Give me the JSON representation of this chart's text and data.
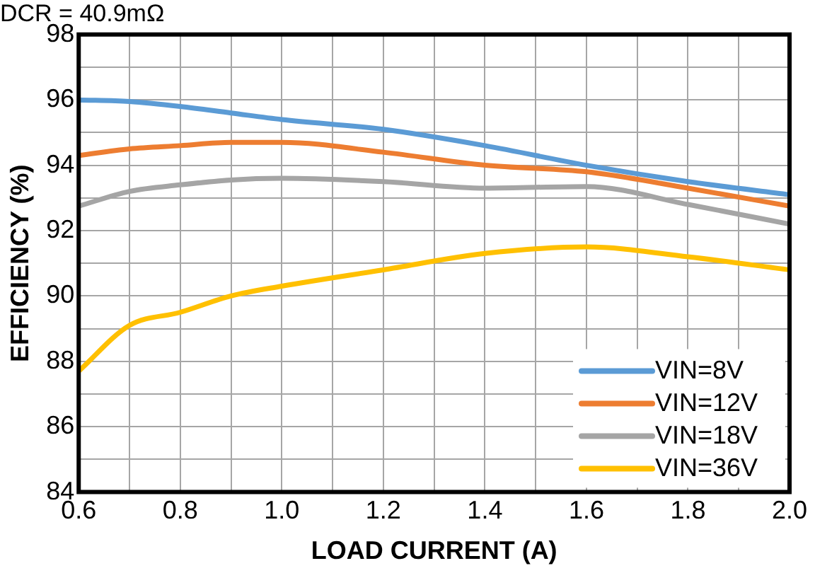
{
  "chart_data": {
    "type": "line",
    "title": "DCR = 40.9mΩ",
    "xlabel": "LOAD CURRENT (A)",
    "ylabel": "EFFICIENCY (%)",
    "x": [
      0.6,
      0.7,
      0.8,
      0.9,
      1.0,
      1.2,
      1.4,
      1.6,
      1.8,
      2.0
    ],
    "series": [
      {
        "name": "VIN=8V",
        "color": "#5b9bd5",
        "values": [
          96.0,
          95.95,
          95.8,
          95.6,
          95.4,
          95.1,
          94.6,
          94.0,
          93.5,
          93.1
        ]
      },
      {
        "name": "VIN=12V",
        "color": "#ed7d31",
        "values": [
          94.3,
          94.5,
          94.6,
          94.7,
          94.7,
          94.4,
          94.0,
          93.8,
          93.3,
          92.75
        ]
      },
      {
        "name": "VIN=18V",
        "color": "#a5a5a5",
        "values": [
          92.75,
          93.2,
          93.4,
          93.55,
          93.6,
          93.5,
          93.3,
          93.35,
          92.8,
          92.2
        ]
      },
      {
        "name": "VIN=36V",
        "color": "#ffc000",
        "values": [
          87.7,
          89.1,
          89.5,
          90.0,
          90.3,
          90.8,
          91.3,
          91.5,
          91.2,
          90.8
        ]
      }
    ],
    "xlim": [
      0.6,
      2.0
    ],
    "xticks": [
      {
        "value": 0.6,
        "label": "0.6"
      },
      {
        "value": 0.7,
        "label": null
      },
      {
        "value": 0.8,
        "label": "0.8"
      },
      {
        "value": 0.9,
        "label": null
      },
      {
        "value": 1.0,
        "label": "1.0"
      },
      {
        "value": 1.1,
        "label": null
      },
      {
        "value": 1.2,
        "label": "1.2"
      },
      {
        "value": 1.3,
        "label": null
      },
      {
        "value": 1.4,
        "label": "1.4"
      },
      {
        "value": 1.5,
        "label": null
      },
      {
        "value": 1.6,
        "label": "1.6"
      },
      {
        "value": 1.7,
        "label": null
      },
      {
        "value": 1.8,
        "label": "1.8"
      },
      {
        "value": 1.9,
        "label": null
      },
      {
        "value": 2.0,
        "label": "2.0"
      }
    ],
    "ylim": [
      84,
      98
    ],
    "yticks": [
      84,
      {
        "value": 85,
        "label": null
      },
      86,
      {
        "value": 87,
        "label": null
      },
      88,
      {
        "value": 89,
        "label": null
      },
      90,
      {
        "value": 91,
        "label": null
      },
      92,
      {
        "value": 93,
        "label": null
      },
      94,
      {
        "value": 95,
        "label": null
      },
      96,
      {
        "value": 97,
        "label": null
      },
      98
    ],
    "grid": true,
    "legend": "bottom right",
    "marker": "none",
    "line_style": "solid"
  }
}
